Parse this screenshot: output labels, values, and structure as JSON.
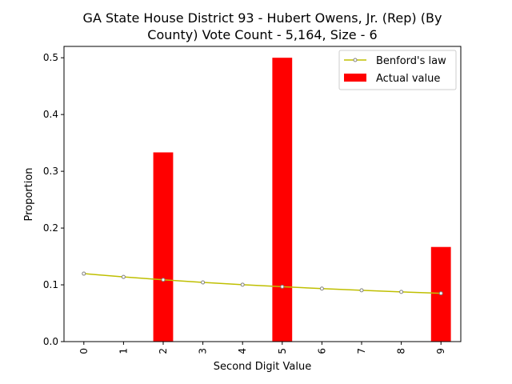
{
  "chart_data": {
    "type": "bar",
    "title_line1": "GA State House District 93 - Hubert Owens, Jr. (Rep) (By",
    "title_line2": "County) Vote Count - 5,164, Size - 6",
    "xlabel": "Second Digit Value",
    "ylabel": "Proportion",
    "categories": [
      "0",
      "1",
      "2",
      "3",
      "4",
      "5",
      "6",
      "7",
      "8",
      "9"
    ],
    "ylim": [
      0,
      0.52
    ],
    "yticks": [
      "0.0",
      "0.1",
      "0.2",
      "0.3",
      "0.4",
      "0.5"
    ],
    "legend_position": "top-right",
    "grid": false,
    "series": [
      {
        "name": "Actual value",
        "kind": "bar",
        "color": "#ff0000",
        "values": [
          0,
          0,
          0.3333,
          0,
          0,
          0.5,
          0,
          0,
          0,
          0.1667
        ]
      },
      {
        "name": "Benford's law",
        "kind": "line",
        "color": "#bfbf00",
        "marker_color": "#808080",
        "values": [
          0.1197,
          0.1139,
          0.1088,
          0.1043,
          0.1003,
          0.0967,
          0.0934,
          0.0904,
          0.0876,
          0.085
        ]
      }
    ]
  }
}
